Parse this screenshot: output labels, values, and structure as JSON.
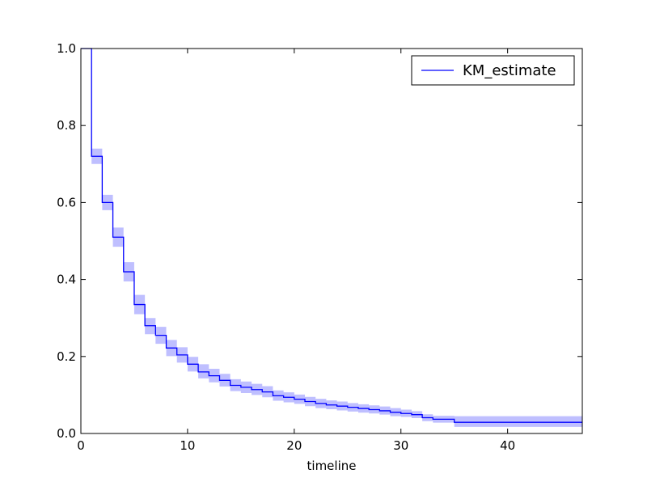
{
  "chart_data": {
    "type": "line",
    "xlabel": "timeline",
    "ylabel": "",
    "xlim": [
      0,
      47
    ],
    "ylim": [
      0.0,
      1.0
    ],
    "xticks": [
      0,
      10,
      20,
      30,
      40
    ],
    "xtick_labels": [
      "0",
      "10",
      "20",
      "30",
      "40"
    ],
    "yticks": [
      0.0,
      0.2,
      0.4,
      0.6,
      0.8,
      1.0
    ],
    "ytick_labels": [
      "0.0",
      "0.2",
      "0.4",
      "0.6",
      "0.8",
      "1.0"
    ],
    "grid": false,
    "legend_position": "top-right",
    "series": [
      {
        "name": "KM_estimate",
        "color": "#0000ff",
        "band_color": "#8080ff",
        "step": "post",
        "x": [
          0,
          1,
          2,
          3,
          4,
          5,
          6,
          7,
          8,
          9,
          10,
          11,
          12,
          13,
          14,
          15,
          16,
          17,
          18,
          19,
          20,
          21,
          22,
          23,
          24,
          25,
          26,
          27,
          28,
          29,
          30,
          31,
          32,
          33,
          35,
          47
        ],
        "y": [
          1.0,
          0.72,
          0.6,
          0.51,
          0.42,
          0.335,
          0.28,
          0.255,
          0.222,
          0.204,
          0.18,
          0.16,
          0.15,
          0.138,
          0.125,
          0.12,
          0.114,
          0.108,
          0.098,
          0.094,
          0.089,
          0.083,
          0.078,
          0.074,
          0.071,
          0.068,
          0.065,
          0.062,
          0.059,
          0.055,
          0.052,
          0.049,
          0.041,
          0.037,
          0.029,
          0.029
        ],
        "lower": [
          1.0,
          0.7,
          0.58,
          0.485,
          0.395,
          0.31,
          0.258,
          0.233,
          0.201,
          0.184,
          0.161,
          0.143,
          0.133,
          0.122,
          0.11,
          0.105,
          0.1,
          0.094,
          0.085,
          0.081,
          0.077,
          0.071,
          0.066,
          0.063,
          0.06,
          0.057,
          0.054,
          0.052,
          0.049,
          0.045,
          0.043,
          0.04,
          0.032,
          0.028,
          0.017,
          0.017
        ],
        "upper": [
          1.0,
          0.74,
          0.62,
          0.535,
          0.445,
          0.36,
          0.3,
          0.277,
          0.243,
          0.224,
          0.199,
          0.18,
          0.168,
          0.155,
          0.141,
          0.135,
          0.129,
          0.123,
          0.112,
          0.107,
          0.101,
          0.095,
          0.09,
          0.086,
          0.083,
          0.079,
          0.076,
          0.073,
          0.07,
          0.066,
          0.062,
          0.058,
          0.05,
          0.046,
          0.045,
          0.045
        ]
      }
    ]
  }
}
